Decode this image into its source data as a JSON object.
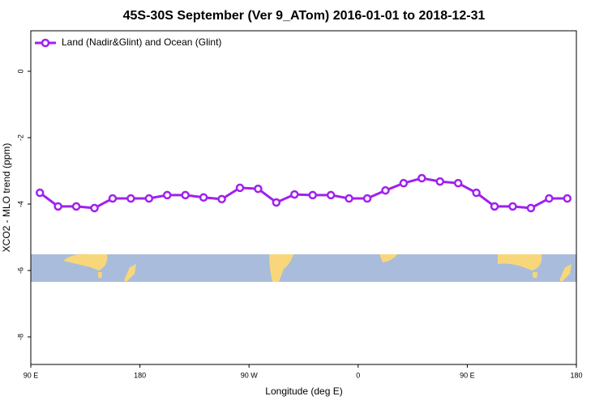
{
  "chart_data": {
    "type": "line",
    "title": "45S-30S September (Ver 9_ATom)   2016-01-01 to 2018-12-31",
    "x_label": "Longitude (deg E)",
    "y_label": "XCO2 - MLO trend (ppm)",
    "x": [
      97.5,
      112.5,
      127.5,
      142.5,
      157.5,
      172.5,
      187.5,
      202.5,
      217.5,
      232.5,
      247.5,
      262.5,
      277.5,
      292.5,
      307.5,
      322.5,
      337.5,
      352.5,
      367.5,
      382.5,
      397.5,
      412.5,
      427.5,
      442.5,
      457.5,
      472.5,
      487.5,
      502.5,
      517.5,
      532.5
    ],
    "series": [
      {
        "name": "Land (Nadir&Glint) and Ocean (Glint)",
        "color": "#a020f0",
        "values": [
          -3.66,
          -4.07,
          -4.07,
          -4.12,
          -3.83,
          -3.83,
          -3.83,
          -3.73,
          -3.73,
          -3.8,
          -3.85,
          -3.51,
          -3.54,
          -3.95,
          -3.71,
          -3.73,
          -3.73,
          -3.83,
          -3.83,
          -3.59,
          -3.37,
          -3.22,
          -3.32,
          -3.37,
          -3.66,
          -4.07,
          -4.07,
          -4.12,
          -3.83,
          -3.83
        ]
      }
    ],
    "xlim": [
      90,
      540
    ],
    "xticks": [
      {
        "value": 90,
        "label": "90 E"
      },
      {
        "value": 180,
        "label": "180"
      },
      {
        "value": 270,
        "label": "90 W"
      },
      {
        "value": 360,
        "label": "0"
      },
      {
        "value": 450,
        "label": "90 E"
      },
      {
        "value": 540,
        "label": "180"
      }
    ],
    "ylim": [
      -8.83,
      1.22
    ],
    "yticks": [
      0,
      -2,
      -4,
      -6,
      -8
    ],
    "legend": "top-left"
  }
}
